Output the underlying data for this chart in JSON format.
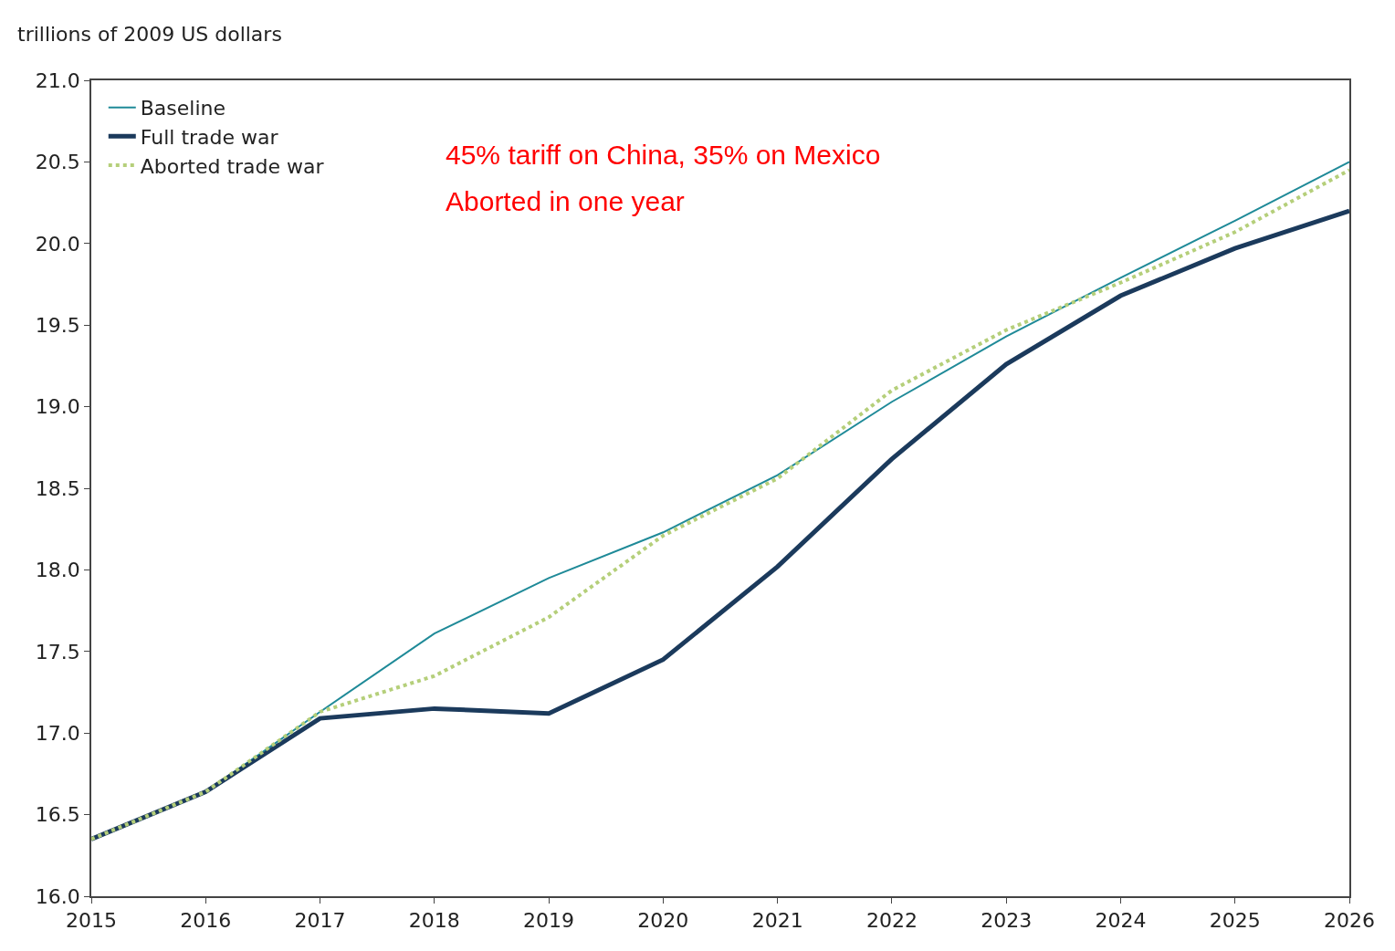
{
  "chart_data": {
    "type": "line",
    "ylabel": "trillions of 2009 US dollars",
    "x": [
      2015,
      2016,
      2017,
      2018,
      2019,
      2020,
      2021,
      2022,
      2023,
      2024,
      2025,
      2026
    ],
    "xlim": [
      2015,
      2026
    ],
    "xticks": [
      2015,
      2016,
      2017,
      2018,
      2019,
      2020,
      2021,
      2022,
      2023,
      2024,
      2025,
      2026
    ],
    "ylim": [
      16.0,
      21.0
    ],
    "yticks": [
      {
        "value": 16.0,
        "label": "16.0"
      },
      {
        "value": 16.5,
        "label": "16.5"
      },
      {
        "value": 17.0,
        "label": "17.0"
      },
      {
        "value": 17.5,
        "label": "17.5"
      },
      {
        "value": 18.0,
        "label": "18.0"
      },
      {
        "value": 18.5,
        "label": "18.5"
      },
      {
        "value": 19.0,
        "label": "19.0"
      },
      {
        "value": 19.5,
        "label": "19.5"
      },
      {
        "value": 20.0,
        "label": "20.0"
      },
      {
        "value": 20.5,
        "label": "20.5"
      },
      {
        "value": 21.0,
        "label": "21.0"
      }
    ],
    "series": [
      {
        "name": "Baseline",
        "color": "#1f8a98",
        "line_style": "solid",
        "values": [
          16.35,
          16.64,
          17.13,
          17.61,
          17.95,
          18.23,
          18.58,
          19.03,
          19.43,
          19.79,
          20.14,
          20.5
        ]
      },
      {
        "name": "Full trade war",
        "color": "#1b3a5c",
        "line_style": "solid",
        "values": [
          16.35,
          16.64,
          17.09,
          17.15,
          17.12,
          17.45,
          18.02,
          18.68,
          19.26,
          19.68,
          19.97,
          20.2
        ]
      },
      {
        "name": "Aborted trade war",
        "color": "#b5cf7a",
        "line_style": "dotted",
        "values": [
          16.35,
          16.64,
          17.13,
          17.35,
          17.71,
          18.21,
          18.56,
          19.1,
          19.47,
          19.76,
          20.07,
          20.45
        ]
      }
    ],
    "annotations": [
      "45% tariff on China, 35% on Mexico",
      "Aborted in one year"
    ],
    "legend": "top left",
    "marker": "none"
  }
}
